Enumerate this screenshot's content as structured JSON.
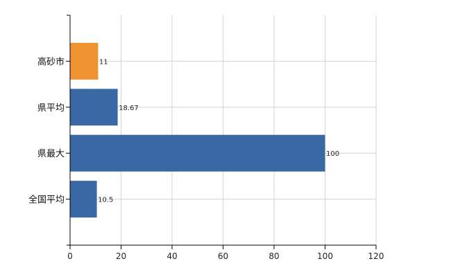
{
  "chart_data": {
    "type": "bar",
    "orientation": "horizontal",
    "categories": [
      "高砂市",
      "県平均",
      "県最大",
      "全国平均"
    ],
    "values": [
      11,
      18.67,
      100,
      10.5
    ],
    "data_labels": [
      "11",
      "18.67",
      "100",
      "10.5"
    ],
    "bar_colors": [
      "#f0922f",
      "#3a68a5",
      "#3a68a5",
      "#3a68a5"
    ],
    "xlim": [
      0,
      120
    ],
    "x_ticks": [
      0,
      20,
      40,
      60,
      80,
      100,
      120
    ],
    "x_tick_labels": [
      "0",
      "20",
      "40",
      "60",
      "80",
      "100",
      "120"
    ],
    "grid": true,
    "legend": "none"
  }
}
